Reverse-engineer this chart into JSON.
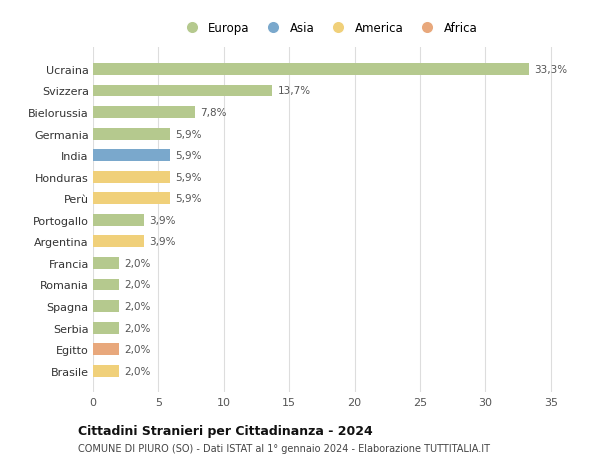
{
  "countries": [
    "Ucraina",
    "Svizzera",
    "Bielorussia",
    "Germania",
    "India",
    "Honduras",
    "Perù",
    "Portogallo",
    "Argentina",
    "Francia",
    "Romania",
    "Spagna",
    "Serbia",
    "Egitto",
    "Brasile"
  ],
  "values": [
    33.3,
    13.7,
    7.8,
    5.9,
    5.9,
    5.9,
    5.9,
    3.9,
    3.9,
    2.0,
    2.0,
    2.0,
    2.0,
    2.0,
    2.0
  ],
  "labels": [
    "33,3%",
    "13,7%",
    "7,8%",
    "5,9%",
    "5,9%",
    "5,9%",
    "5,9%",
    "3,9%",
    "3,9%",
    "2,0%",
    "2,0%",
    "2,0%",
    "2,0%",
    "2,0%",
    "2,0%"
  ],
  "continents": [
    "Europa",
    "Europa",
    "Europa",
    "Europa",
    "Asia",
    "America",
    "America",
    "Europa",
    "America",
    "Europa",
    "Europa",
    "Europa",
    "Europa",
    "Africa",
    "America"
  ],
  "continent_colors": {
    "Europa": "#b5c98e",
    "Asia": "#7aa8cc",
    "America": "#f0d07a",
    "Africa": "#e8a87c"
  },
  "legend_order": [
    "Europa",
    "Asia",
    "America",
    "Africa"
  ],
  "xlim": [
    0,
    36
  ],
  "xticks": [
    0,
    5,
    10,
    15,
    20,
    25,
    30,
    35
  ],
  "title": "Cittadini Stranieri per Cittadinanza - 2024",
  "subtitle": "COMUNE DI PIURO (SO) - Dati ISTAT al 1° gennaio 2024 - Elaborazione TUTTITALIA.IT",
  "bg_color": "#ffffff",
  "plot_bg_color": "#ffffff",
  "grid_color": "#dddddd",
  "bar_height": 0.55
}
